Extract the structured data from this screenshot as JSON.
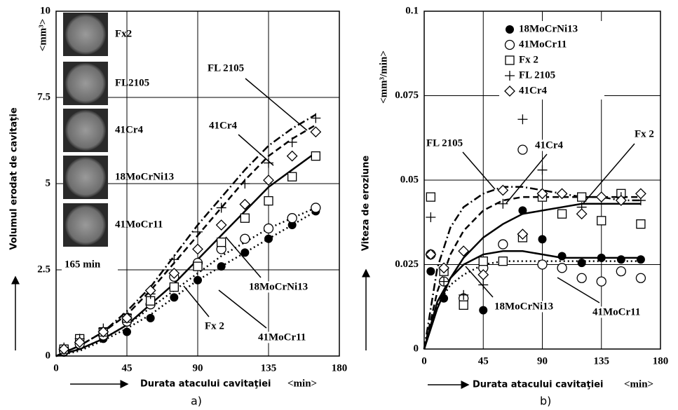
{
  "chart_data": [
    {
      "type": "scatter",
      "panel": "a)",
      "x_label": "Durata atacului cavitaţiei",
      "x_unit": "<min>",
      "y_label": "Volumul erodat de cavitaţie",
      "y_unit": "<mm³>",
      "xlim": [
        0,
        180
      ],
      "xticks": [
        0,
        45,
        90,
        135,
        180
      ],
      "ylim": [
        0,
        10
      ],
      "yticks": [
        0,
        2.5,
        5,
        7.5,
        10
      ],
      "grid": true,
      "specimens": [
        "Fx2",
        "FL2105",
        "41Cr4",
        "18MoCrNi13",
        "41MoCr11"
      ],
      "specimen_note": "165 min",
      "x": [
        5,
        15,
        30,
        45,
        60,
        75,
        90,
        105,
        120,
        135,
        150,
        165
      ],
      "fit_x": [
        0,
        15,
        30,
        45,
        60,
        75,
        90,
        105,
        120,
        135,
        150,
        165
      ],
      "series": [
        {
          "name": "18MoCrNi13",
          "color": "#000000",
          "marker": "filled-circle",
          "line_style": "dotted",
          "values": [
            0.1,
            0.3,
            0.5,
            0.7,
            1.1,
            1.7,
            2.2,
            2.6,
            3.0,
            3.4,
            3.8,
            4.2
          ],
          "fit": [
            0,
            0.15,
            0.45,
            0.8,
            1.2,
            1.7,
            2.2,
            2.6,
            3.0,
            3.4,
            3.8,
            4.2
          ]
        },
        {
          "name": "41MoCr11",
          "color": "#000000",
          "marker": "circle",
          "line_style": "dotted",
          "values": [
            0.15,
            0.35,
            0.6,
            1.0,
            1.5,
            2.3,
            2.7,
            3.1,
            3.4,
            3.7,
            4.0,
            4.3
          ],
          "fit": [
            0,
            0.2,
            0.5,
            0.9,
            1.4,
            1.9,
            2.4,
            2.9,
            3.3,
            3.7,
            4.0,
            4.3
          ]
        },
        {
          "name": "Fx 2",
          "color": "#000000",
          "marker": "square",
          "line_style": "solid",
          "values": [
            0.2,
            0.5,
            0.7,
            1.1,
            1.6,
            2.0,
            2.6,
            3.3,
            4.0,
            4.5,
            5.2,
            5.8
          ],
          "fit": [
            0,
            0.2,
            0.5,
            0.9,
            1.5,
            2.1,
            2.8,
            3.5,
            4.2,
            4.9,
            5.4,
            5.9
          ]
        },
        {
          "name": "FL 2105",
          "color": "#000000",
          "marker": "plus",
          "line_style": "dashdot",
          "values": [
            0.25,
            0.5,
            0.8,
            1.2,
            1.8,
            2.8,
            3.6,
            4.3,
            5.0,
            5.6,
            6.2,
            6.9
          ],
          "fit": [
            0,
            0.3,
            0.7,
            1.3,
            2.0,
            2.9,
            3.8,
            4.6,
            5.4,
            6.1,
            6.6,
            7.0
          ]
        },
        {
          "name": "41Cr4",
          "color": "#000000",
          "marker": "diamond",
          "line_style": "dashed",
          "values": [
            0.2,
            0.4,
            0.7,
            1.1,
            1.9,
            2.4,
            3.1,
            3.8,
            4.4,
            5.1,
            5.8,
            6.5
          ],
          "fit": [
            0,
            0.3,
            0.7,
            1.2,
            1.9,
            2.7,
            3.5,
            4.3,
            5.1,
            5.8,
            6.3,
            6.7
          ]
        }
      ]
    },
    {
      "type": "scatter",
      "panel": "b)",
      "x_label": "Durata atacului cavitaţiei",
      "x_unit": "<min>",
      "y_label": "Viteza de eroziune",
      "y_unit": "<mm³/min>",
      "xlim": [
        0,
        180
      ],
      "xticks": [
        0,
        45,
        90,
        135,
        180
      ],
      "ylim": [
        0,
        0.1
      ],
      "yticks": [
        0,
        0.025,
        0.05,
        0.075,
        0.1
      ],
      "grid": true,
      "legend": "top",
      "x": [
        5,
        15,
        30,
        45,
        60,
        75,
        90,
        105,
        120,
        135,
        150,
        165
      ],
      "fit_x": [
        0,
        10,
        20,
        30,
        45,
        60,
        75,
        90,
        105,
        120,
        135,
        150,
        165
      ],
      "series": [
        {
          "name": "18MoCrNi13",
          "color": "#000000",
          "marker": "filled-circle",
          "line_style": "solid",
          "values": [
            0.023,
            0.015,
            0.014,
            0.0115,
            0.026,
            0.041,
            0.0325,
            0.0275,
            0.0255,
            0.027,
            0.0265,
            0.0265
          ],
          "fit": [
            0,
            0.014,
            0.021,
            0.025,
            0.028,
            0.029,
            0.029,
            0.028,
            0.027,
            0.027,
            0.027,
            0.027,
            0.027
          ]
        },
        {
          "name": "41MoCr11",
          "color": "#000000",
          "marker": "circle",
          "line_style": "dotted",
          "values": [
            0.028,
            0.02,
            0.015,
            0.024,
            0.031,
            0.059,
            0.025,
            0.024,
            0.021,
            0.02,
            0.023,
            0.021
          ],
          "fit": [
            0,
            0.013,
            0.019,
            0.022,
            0.025,
            0.026,
            0.026,
            0.026,
            0.026,
            0.026,
            0.026,
            0.026,
            0.026
          ]
        },
        {
          "name": "Fx 2",
          "color": "#000000",
          "marker": "square",
          "line_style": "solid",
          "values": [
            0.045,
            0.023,
            0.013,
            0.026,
            0.026,
            0.033,
            0.045,
            0.04,
            0.045,
            0.038,
            0.046,
            0.037
          ],
          "fit": [
            0,
            0.012,
            0.021,
            0.027,
            0.033,
            0.037,
            0.04,
            0.041,
            0.042,
            0.043,
            0.043,
            0.043,
            0.043
          ]
        },
        {
          "name": "FL 2105",
          "color": "#000000",
          "marker": "plus",
          "line_style": "dashdot",
          "values": [
            0.039,
            0.02,
            0.016,
            0.019,
            0.043,
            0.068,
            0.053,
            0.046,
            0.042,
            0.045,
            0.045,
            0.044
          ],
          "fit": [
            0,
            0.024,
            0.036,
            0.042,
            0.046,
            0.048,
            0.048,
            0.047,
            0.046,
            0.045,
            0.045,
            0.044,
            0.044
          ]
        },
        {
          "name": "41Cr4",
          "color": "#000000",
          "marker": "diamond",
          "line_style": "dashed",
          "values": [
            0.028,
            0.024,
            0.029,
            0.022,
            0.047,
            0.034,
            0.046,
            0.046,
            0.04,
            0.045,
            0.044,
            0.046
          ],
          "fit": [
            0,
            0.017,
            0.028,
            0.035,
            0.041,
            0.044,
            0.045,
            0.045,
            0.045,
            0.045,
            0.045,
            0.045,
            0.045
          ]
        }
      ]
    }
  ]
}
